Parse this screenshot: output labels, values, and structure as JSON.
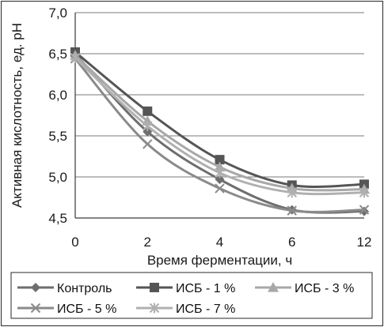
{
  "chart_data": {
    "type": "line",
    "x": [
      "0",
      "2",
      "4",
      "6",
      "12"
    ],
    "xlabel": "Время ферментации, ч",
    "ylabel": "Активная кислотность, ед. рН",
    "ylim": [
      4.5,
      7.0
    ],
    "yticks": [
      "4,5",
      "5,0",
      "5,5",
      "6,0",
      "6,5",
      "7,0"
    ],
    "grid": true,
    "legend_position": "bottom",
    "series": [
      {
        "name": "Контроль",
        "values": [
          6.5,
          5.55,
          4.97,
          4.6,
          4.58
        ],
        "color": "#6e6e6e",
        "marker": "diamond"
      },
      {
        "name": "ИСБ - 1 %",
        "values": [
          6.52,
          5.8,
          5.21,
          4.9,
          4.91
        ],
        "color": "#555555",
        "marker": "square"
      },
      {
        "name": "ИСБ - 3 %",
        "values": [
          6.48,
          5.68,
          5.12,
          4.86,
          4.85
        ],
        "color": "#a8a8a8",
        "marker": "triangle"
      },
      {
        "name": "ИСБ - 5 %",
        "values": [
          6.44,
          5.4,
          4.86,
          4.59,
          4.6
        ],
        "color": "#8a8a8a",
        "marker": "x"
      },
      {
        "name": "ИСБ - 7 %",
        "values": [
          6.45,
          5.62,
          5.05,
          4.81,
          4.81
        ],
        "color": "#b0b0b0",
        "marker": "star"
      }
    ]
  }
}
